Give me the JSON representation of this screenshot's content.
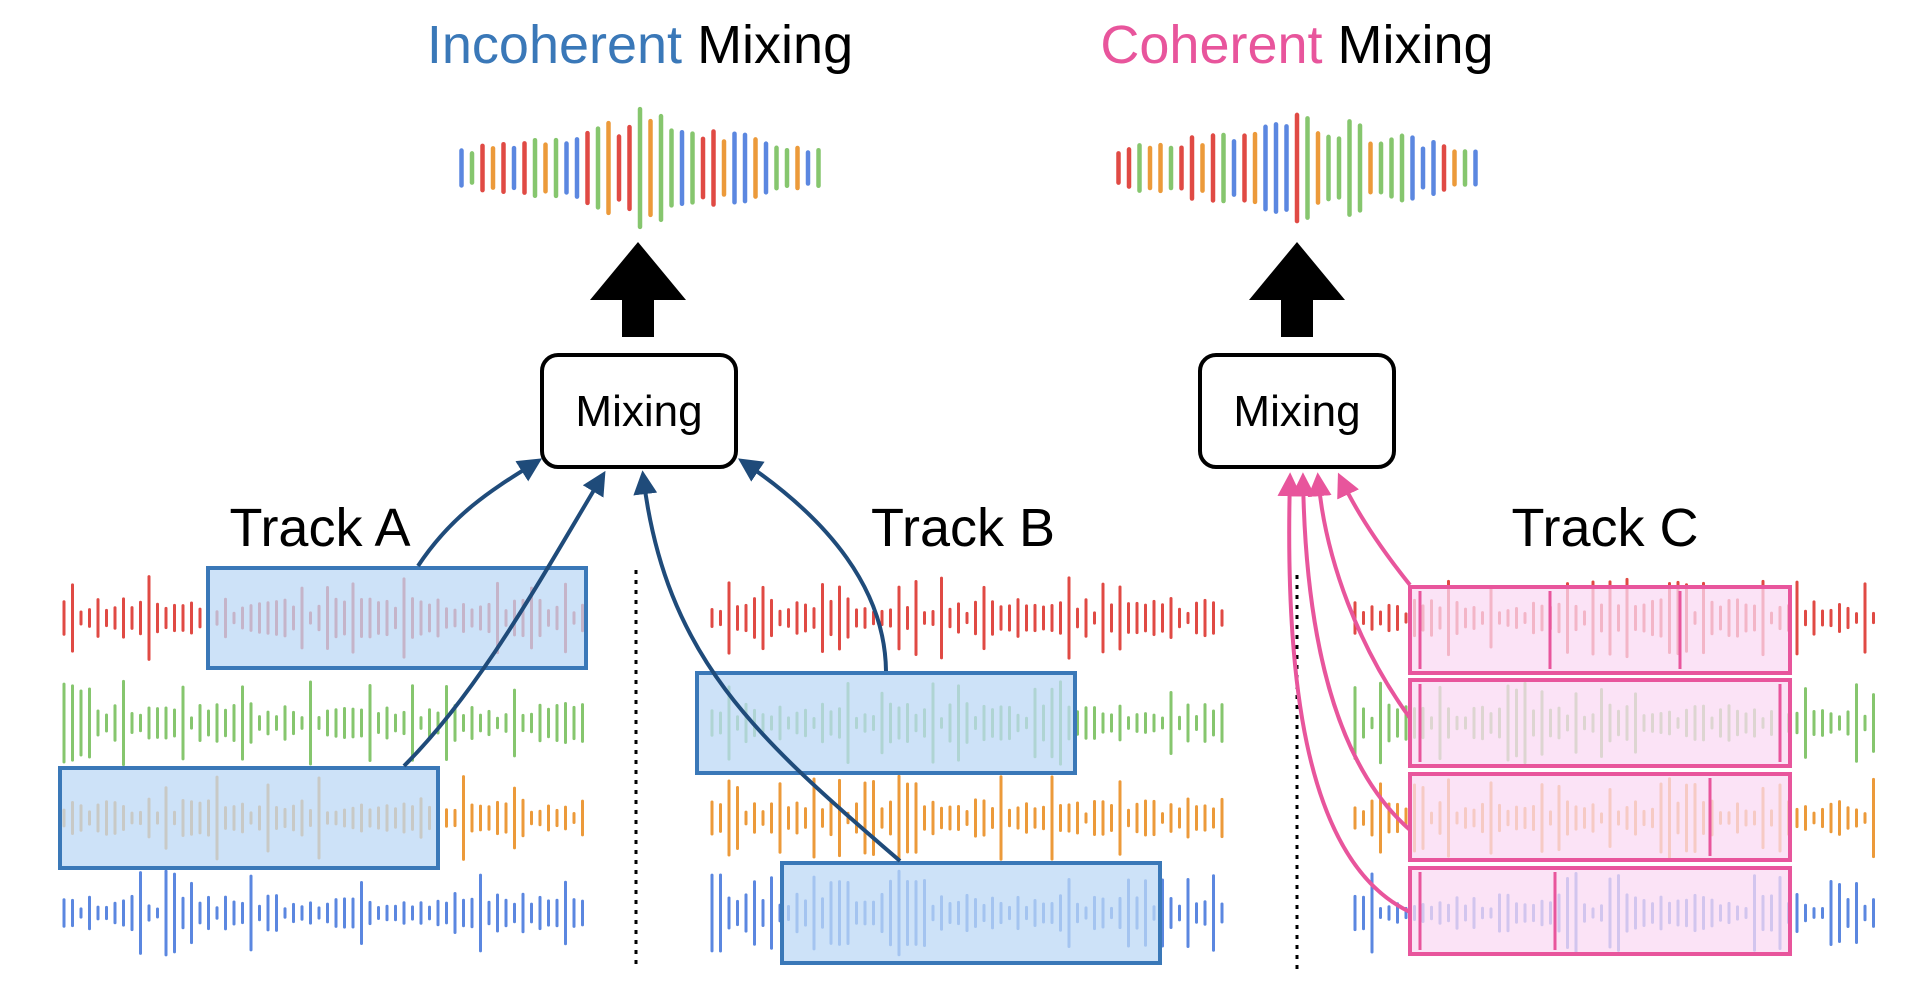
{
  "left_panel": {
    "title_colored": "Incoherent",
    "title_plain": " Mixing",
    "mixing_label": "Mixing",
    "track_a_label": "Track A",
    "track_b_label": "Track B"
  },
  "right_panel": {
    "title_colored": "Coherent",
    "title_plain": " Mixing",
    "mixing_label": "Mixing",
    "track_c_label": "Track C"
  },
  "colors": {
    "incoherent": "#3a78b8",
    "coherent": "#e8559c",
    "red": "#e04a44",
    "green": "#86c66e",
    "orange": "#ec9a3a",
    "blue": "#5b87e0",
    "brown": "#9a7d5a",
    "arrow_blue": "#1f4b7a",
    "segment_fill_blue": "#bcd8f5",
    "segment_fill_pink": "#f9d9f3"
  },
  "icons": [
    "up-arrow-icon",
    "waveform-icon"
  ]
}
